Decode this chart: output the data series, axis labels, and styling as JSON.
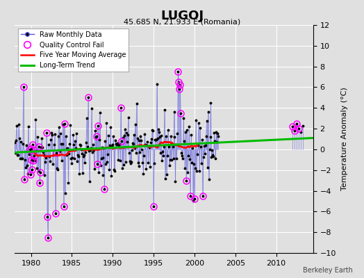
{
  "title": "LUGOJ",
  "subtitle": "45.685 N, 21.933 E (Romania)",
  "ylabel": "Temperature Anomaly (°C)",
  "xlabel_note": "Berkeley Earth",
  "ylim": [
    -10,
    12
  ],
  "xlim": [
    1978.0,
    2014.5
  ],
  "xticks": [
    1980,
    1985,
    1990,
    1995,
    2000,
    2005,
    2010
  ],
  "yticks": [
    -10,
    -8,
    -6,
    -4,
    -2,
    0,
    2,
    4,
    6,
    8,
    10,
    12
  ],
  "bg_color": "#e0e0e0",
  "plot_bg_color": "#e0e0e0",
  "grid_color": "#ffffff",
  "raw_line_color": "#5555dd",
  "raw_dot_color": "#000000",
  "qc_fail_color": "#ff00ff",
  "moving_avg_color": "#ff0000",
  "trend_color": "#00bb00",
  "seed": 42
}
